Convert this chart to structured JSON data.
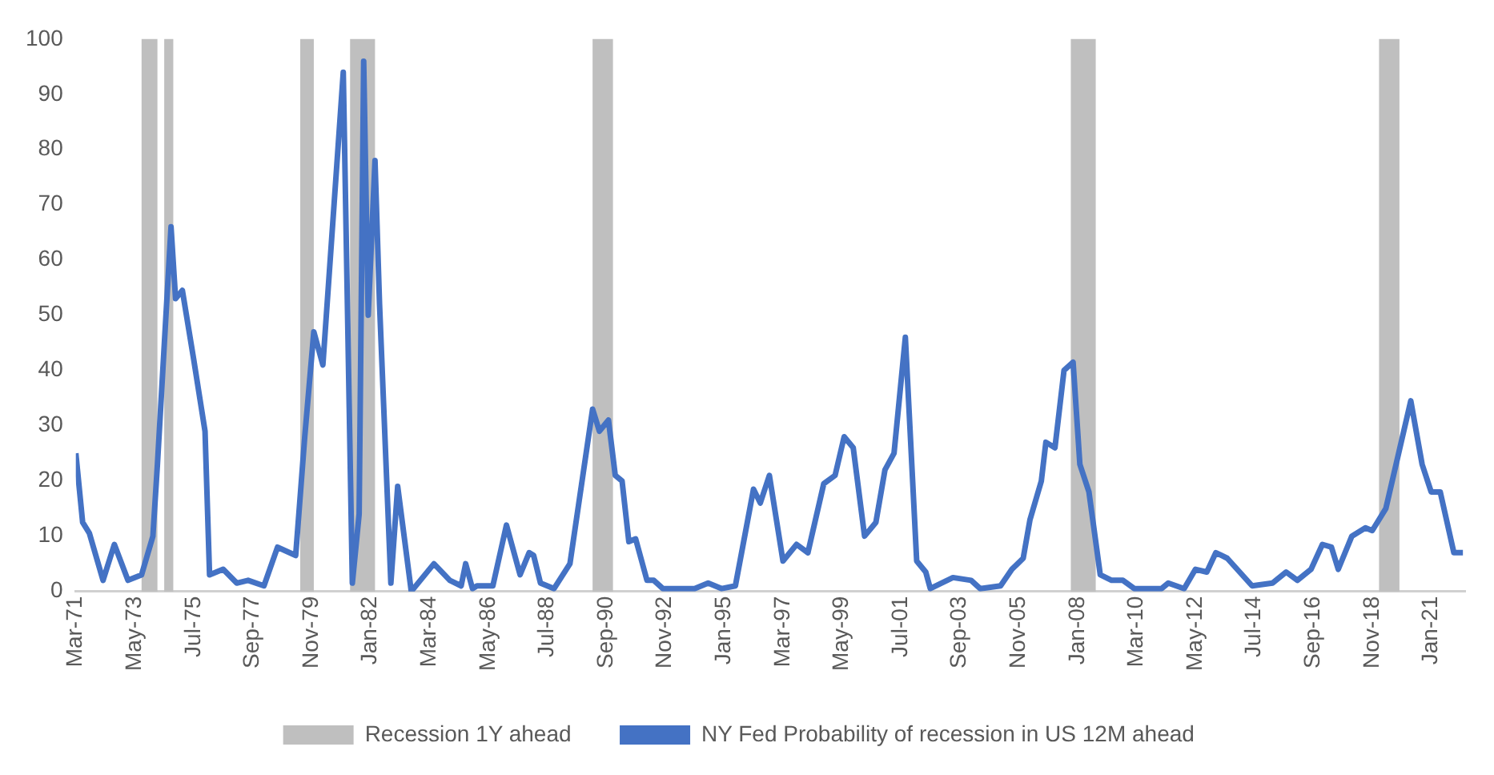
{
  "chart_data": {
    "type": "line",
    "x": [
      "1971-03",
      "1971-06",
      "1971-09",
      "1972-03",
      "1972-08",
      "1973-02",
      "1973-08",
      "1974-01",
      "1974-03",
      "1974-09",
      "1974-11",
      "1975-02",
      "1975-07",
      "1975-12",
      "1976-02",
      "1976-08",
      "1977-02",
      "1977-07",
      "1978-02",
      "1978-08",
      "1979-04",
      "1979-08",
      "1979-12",
      "1980-04",
      "1981-01",
      "1981-05",
      "1981-08",
      "1981-10",
      "1981-12",
      "1982-03",
      "1982-05",
      "1982-10",
      "1983-01",
      "1983-07",
      "1984-05",
      "1984-12",
      "1985-05",
      "1985-07",
      "1985-10",
      "1985-12",
      "1986-07",
      "1987-01",
      "1987-07",
      "1987-11",
      "1988-01",
      "1988-04",
      "1988-10",
      "1989-05",
      "1990-03",
      "1990-06",
      "1990-10",
      "1991-01",
      "1991-04",
      "1991-07",
      "1991-10",
      "1992-03",
      "1992-06",
      "1992-10",
      "1993-12",
      "1994-06",
      "1994-12",
      "1995-06",
      "1996-02",
      "1996-05",
      "1996-09",
      "1997-03",
      "1997-09",
      "1998-02",
      "1998-09",
      "1999-02",
      "1999-06",
      "1999-10",
      "2000-03",
      "2000-08",
      "2000-12",
      "2001-04",
      "2001-09",
      "2002-02",
      "2002-06",
      "2002-08",
      "2003-06",
      "2004-02",
      "2004-06",
      "2005-03",
      "2005-08",
      "2006-01",
      "2006-04",
      "2006-09",
      "2006-11",
      "2007-03",
      "2007-07",
      "2007-11",
      "2008-02",
      "2008-06",
      "2008-11",
      "2009-04",
      "2009-09",
      "2010-02",
      "2011-02",
      "2011-05",
      "2011-12",
      "2012-05",
      "2012-10",
      "2013-02",
      "2013-07",
      "2014-06",
      "2015-03",
      "2015-09",
      "2016-02",
      "2016-08",
      "2017-01",
      "2017-05",
      "2017-08",
      "2018-02",
      "2018-08",
      "2018-11",
      "2019-05",
      "2020-04",
      "2020-09",
      "2021-01",
      "2021-05",
      "2021-11",
      "2022-03"
    ],
    "series": [
      {
        "name": "NY Fed Probability of recession in US 12M ahead",
        "color": "#4472c4",
        "values": [
          25,
          12.5,
          10.5,
          2,
          8.5,
          2,
          3,
          10,
          23,
          66,
          53,
          54.5,
          42,
          29,
          3,
          4,
          1.5,
          2,
          1,
          8,
          6.5,
          28,
          47,
          41,
          94,
          1.5,
          14,
          96,
          50,
          78,
          52,
          1.5,
          19,
          0,
          5,
          2,
          1,
          5,
          0.5,
          1,
          1,
          12,
          3,
          7,
          6.5,
          1.5,
          0.5,
          5,
          33,
          29,
          31,
          21,
          20,
          9,
          9.5,
          2,
          2,
          0.5,
          0.5,
          1.5,
          0.5,
          1,
          18.5,
          16,
          21,
          5.5,
          8.5,
          7,
          19.5,
          21,
          28,
          26,
          10,
          12.5,
          22,
          25,
          46,
          5.5,
          3.5,
          0.5,
          2.5,
          2,
          0.5,
          1,
          4,
          6,
          13,
          20,
          27,
          26,
          40,
          41.5,
          23,
          18,
          3,
          2,
          2,
          0.5,
          0.5,
          1.5,
          0.5,
          4,
          3.5,
          7,
          6,
          1,
          1.5,
          3.5,
          2,
          4,
          8.5,
          8,
          4,
          10,
          11.5,
          11,
          15,
          34.5,
          23,
          18,
          18,
          7,
          7
        ]
      }
    ],
    "xlim": [
      "1971-03",
      "2022-04"
    ],
    "xticks": [
      {
        "value": "1971-03",
        "label": "Mar-71"
      },
      {
        "value": "1973-05",
        "label": "May-73"
      },
      {
        "value": "1975-07",
        "label": "Jul-75"
      },
      {
        "value": "1977-09",
        "label": "Sep-77"
      },
      {
        "value": "1979-11",
        "label": "Nov-79"
      },
      {
        "value": "1982-01",
        "label": "Jan-82"
      },
      {
        "value": "1984-03",
        "label": "Mar-84"
      },
      {
        "value": "1986-05",
        "label": "May-86"
      },
      {
        "value": "1988-07",
        "label": "Jul-88"
      },
      {
        "value": "1990-09",
        "label": "Sep-90"
      },
      {
        "value": "1992-11",
        "label": "Nov-92"
      },
      {
        "value": "1995-01",
        "label": "Jan-95"
      },
      {
        "value": "1997-03",
        "label": "Mar-97"
      },
      {
        "value": "1999-05",
        "label": "May-99"
      },
      {
        "value": "2001-07",
        "label": "Jul-01"
      },
      {
        "value": "2003-09",
        "label": "Sep-03"
      },
      {
        "value": "2005-11",
        "label": "Nov-05"
      },
      {
        "value": "2008-01",
        "label": "Jan-08"
      },
      {
        "value": "2010-03",
        "label": "Mar-10"
      },
      {
        "value": "2012-05",
        "label": "May-12"
      },
      {
        "value": "2014-07",
        "label": "Jul-14"
      },
      {
        "value": "2016-09",
        "label": "Sep-16"
      },
      {
        "value": "2018-11",
        "label": "Nov-18"
      },
      {
        "value": "2021-01",
        "label": "Jan-21"
      }
    ],
    "ylim": [
      0,
      100
    ],
    "yticks": [
      0,
      10,
      20,
      30,
      40,
      50,
      60,
      70,
      80,
      90,
      100
    ],
    "bands": [
      {
        "axis": "x",
        "from": "1973-08",
        "to": "1974-03",
        "label": "Recession 1Y ahead",
        "color": "#bfbfbf"
      },
      {
        "axis": "x",
        "from": "1974-06",
        "to": "1974-10",
        "color": "#bfbfbf"
      },
      {
        "axis": "x",
        "from": "1979-06",
        "to": "1979-12",
        "color": "#bfbfbf"
      },
      {
        "axis": "x",
        "from": "1981-04",
        "to": "1982-03",
        "color": "#bfbfbf"
      },
      {
        "axis": "x",
        "from": "1990-03",
        "to": "1990-12",
        "color": "#bfbfbf"
      },
      {
        "axis": "x",
        "from": "2007-10",
        "to": "2008-09",
        "color": "#bfbfbf"
      },
      {
        "axis": "x",
        "from": "2019-02",
        "to": "2019-11",
        "color": "#bfbfbf"
      }
    ],
    "grid": false,
    "legend": "bottom",
    "marker": "none",
    "line_style": "solid"
  }
}
